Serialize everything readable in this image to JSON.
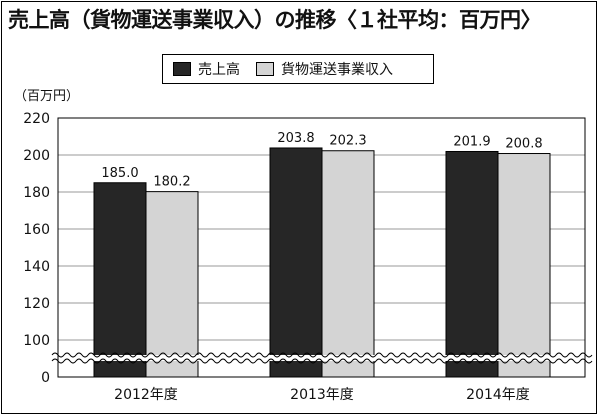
{
  "title": "売上高（貨物運送事業収入）の推移〈１社平均：百万円〉",
  "unit": "（百万円）",
  "colors": {
    "series1": "#262626",
    "series2": "#d4d4d4",
    "grid": "#9a9a9a"
  },
  "chart_data": {
    "type": "bar",
    "title": "売上高（貨物運送事業収入）の推移〈１社平均：百万円〉",
    "ylabel": "（百万円）",
    "xlabel": "",
    "categories": [
      "2012年度",
      "2013年度",
      "2014年度"
    ],
    "series": [
      {
        "name": "売上高",
        "values": [
          185.0,
          203.8,
          201.9
        ],
        "labels": [
          "185.0",
          "203.8",
          "201.9"
        ]
      },
      {
        "name": "貨物運送事業収入",
        "values": [
          180.2,
          202.3,
          200.8
        ],
        "labels": [
          "180.2",
          "202.3",
          "200.8"
        ]
      }
    ],
    "ylim": [
      0,
      220
    ],
    "axis_break": [
      0,
      100
    ],
    "yticks": [
      0,
      100,
      120,
      140,
      160,
      180,
      200,
      220
    ],
    "grid": true,
    "legend_position": "top-center"
  }
}
